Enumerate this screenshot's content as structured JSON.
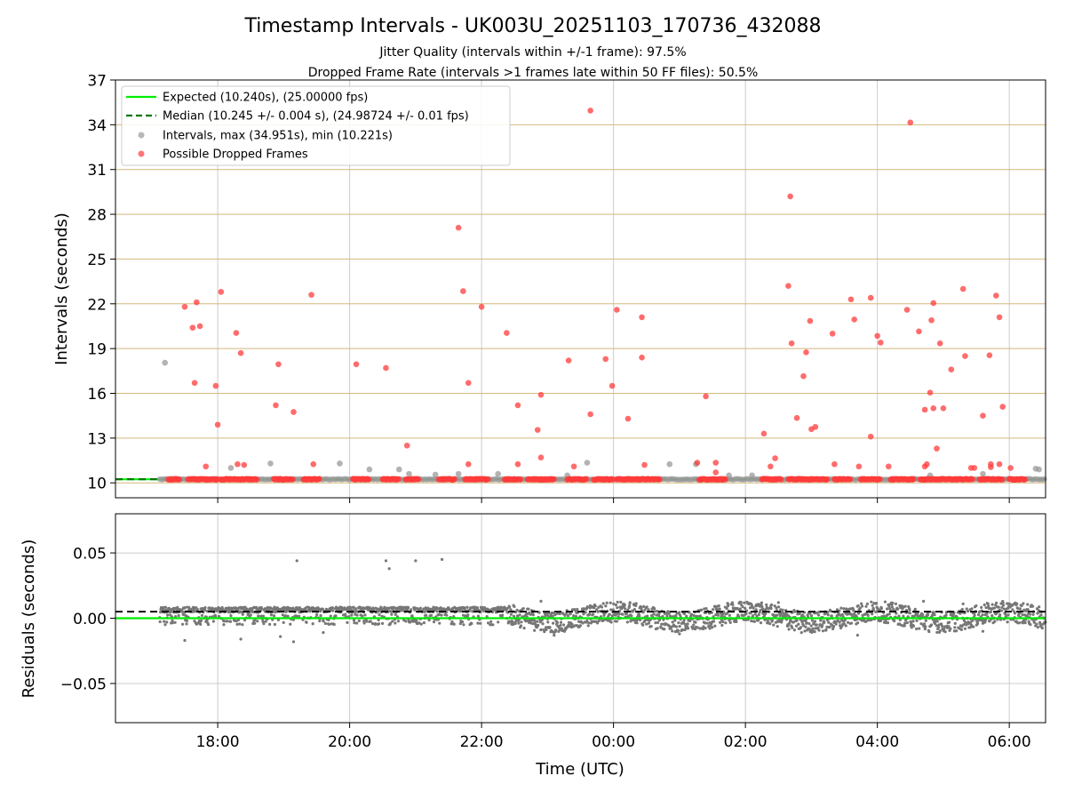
{
  "header": {
    "title": "Timestamp Intervals - UK003U_20251103_170736_432088",
    "subtitle1": "Jitter Quality (intervals within +/-1 frame): 97.5%",
    "subtitle2": "Dropped Frame Rate (intervals >1 frames late within 50 FF files): 50.5%"
  },
  "colors": {
    "expected": "#00ee00",
    "median": "#007700",
    "intervals": "#999999",
    "dropped": "#ff3b3b",
    "residual": "#777777",
    "hgrid": "#d4b87a",
    "vgrid": "#cccccc"
  },
  "chart_data": [
    {
      "type": "scatter",
      "ylabel": "Intervals (seconds)",
      "ylim": [
        9.0,
        37.0
      ],
      "yticks": [
        "10",
        "13",
        "16",
        "19",
        "22",
        "25",
        "28",
        "31",
        "34",
        "37"
      ],
      "ytick_values": [
        10,
        13,
        16,
        19,
        22,
        25,
        28,
        31,
        34,
        37
      ],
      "xlim_hours": [
        16.45,
        30.55
      ],
      "xticks": [
        "18:00",
        "20:00",
        "22:00",
        "00:00",
        "02:00",
        "04:00",
        "06:00"
      ],
      "xtick_hours": [
        18,
        20,
        22,
        24,
        26,
        28,
        30
      ],
      "grid": true,
      "legend_placement": "top-left",
      "legend": [
        "Expected (10.240s), (25.00000 fps)",
        "Median (10.245 +/- 0.004 s), (24.98724 +/- 0.01 fps)",
        "Intervals, max (34.951s), min (10.221s)",
        "Possible Dropped Frames"
      ],
      "lines": {
        "expected": 10.24,
        "median": 10.245
      },
      "baseline": {
        "value": 10.24,
        "x_start": 17.12,
        "x_end": 30.55
      },
      "dropped_bands": [
        [
          17.25,
          17.42
        ],
        [
          17.55,
          18.0
        ],
        [
          18.05,
          18.6
        ],
        [
          18.85,
          19.15
        ],
        [
          19.3,
          19.55
        ],
        [
          20.05,
          20.3
        ],
        [
          20.5,
          20.75
        ],
        [
          20.85,
          21.05
        ],
        [
          21.35,
          21.6
        ],
        [
          21.75,
          22.1
        ],
        [
          22.35,
          22.6
        ],
        [
          22.7,
          23.1
        ],
        [
          23.3,
          23.6
        ],
        [
          23.7,
          24.0
        ],
        [
          24.05,
          24.7
        ],
        [
          25.3,
          25.7
        ],
        [
          26.25,
          26.55
        ],
        [
          26.65,
          27.25
        ],
        [
          27.35,
          27.6
        ],
        [
          27.75,
          28.05
        ],
        [
          28.2,
          28.55
        ],
        [
          28.65,
          29.45
        ],
        [
          29.55,
          29.9
        ],
        [
          30.0,
          30.25
        ]
      ],
      "intervals": [
        [
          17.2,
          18.05
        ],
        [
          18.2,
          11.0
        ],
        [
          18.8,
          11.3
        ],
        [
          19.85,
          11.3
        ],
        [
          20.3,
          10.9
        ],
        [
          20.75,
          10.9
        ],
        [
          20.9,
          10.6
        ],
        [
          21.3,
          10.55
        ],
        [
          21.65,
          10.6
        ],
        [
          22.25,
          10.6
        ],
        [
          23.3,
          10.5
        ],
        [
          23.6,
          11.35
        ],
        [
          24.85,
          11.25
        ],
        [
          25.25,
          11.25
        ],
        [
          25.75,
          10.5
        ],
        [
          26.1,
          10.5
        ],
        [
          28.8,
          10.5
        ],
        [
          29.6,
          10.6
        ],
        [
          30.4,
          10.95
        ],
        [
          30.45,
          10.9
        ]
      ],
      "dropped": [
        [
          17.5,
          21.8
        ],
        [
          17.62,
          20.4
        ],
        [
          17.65,
          16.7
        ],
        [
          17.68,
          22.1
        ],
        [
          17.73,
          20.5
        ],
        [
          17.82,
          11.1
        ],
        [
          17.97,
          16.5
        ],
        [
          18.0,
          13.9
        ],
        [
          18.05,
          22.8
        ],
        [
          18.28,
          20.05
        ],
        [
          18.35,
          18.7
        ],
        [
          18.3,
          11.25
        ],
        [
          18.4,
          11.2
        ],
        [
          18.88,
          15.2
        ],
        [
          18.92,
          17.95
        ],
        [
          19.15,
          14.75
        ],
        [
          19.42,
          22.6
        ],
        [
          19.45,
          11.25
        ],
        [
          20.1,
          17.95
        ],
        [
          20.55,
          17.7
        ],
        [
          20.87,
          12.5
        ],
        [
          21.65,
          27.1
        ],
        [
          21.72,
          22.85
        ],
        [
          21.8,
          16.7
        ],
        [
          21.8,
          11.25
        ],
        [
          22.0,
          21.8
        ],
        [
          22.38,
          20.05
        ],
        [
          22.55,
          15.2
        ],
        [
          22.55,
          11.25
        ],
        [
          22.85,
          13.55
        ],
        [
          22.9,
          15.9
        ],
        [
          22.9,
          11.7
        ],
        [
          23.32,
          18.2
        ],
        [
          23.4,
          11.1
        ],
        [
          23.65,
          34.95
        ],
        [
          23.65,
          14.6
        ],
        [
          23.88,
          18.3
        ],
        [
          23.98,
          16.5
        ],
        [
          24.05,
          21.6
        ],
        [
          24.22,
          14.3
        ],
        [
          24.43,
          18.4
        ],
        [
          24.43,
          21.1
        ],
        [
          24.47,
          11.2
        ],
        [
          25.27,
          11.35
        ],
        [
          25.4,
          15.8
        ],
        [
          25.55,
          11.35
        ],
        [
          25.55,
          10.7
        ],
        [
          26.28,
          13.3
        ],
        [
          26.38,
          11.1
        ],
        [
          26.45,
          11.65
        ],
        [
          26.65,
          23.2
        ],
        [
          26.7,
          19.35
        ],
        [
          26.68,
          29.2
        ],
        [
          26.78,
          14.35
        ],
        [
          26.88,
          17.15
        ],
        [
          26.92,
          18.75
        ],
        [
          26.98,
          20.85
        ],
        [
          27.0,
          13.6
        ],
        [
          27.06,
          13.75
        ],
        [
          27.32,
          20.0
        ],
        [
          27.35,
          11.25
        ],
        [
          27.6,
          22.3
        ],
        [
          27.65,
          20.95
        ],
        [
          27.72,
          11.1
        ],
        [
          27.9,
          22.4
        ],
        [
          27.9,
          13.1
        ],
        [
          28.0,
          19.85
        ],
        [
          28.05,
          19.4
        ],
        [
          28.17,
          11.1
        ],
        [
          28.45,
          21.6
        ],
        [
          28.5,
          34.15
        ],
        [
          28.63,
          20.15
        ],
        [
          28.72,
          11.1
        ],
        [
          28.75,
          11.25
        ],
        [
          28.72,
          14.9
        ],
        [
          28.8,
          16.05
        ],
        [
          28.82,
          20.9
        ],
        [
          28.85,
          22.05
        ],
        [
          28.85,
          15.0
        ],
        [
          28.9,
          12.3
        ],
        [
          28.95,
          19.35
        ],
        [
          29.0,
          15.0
        ],
        [
          29.12,
          17.6
        ],
        [
          29.3,
          23.0
        ],
        [
          29.33,
          18.5
        ],
        [
          29.42,
          11.0
        ],
        [
          29.47,
          11.0
        ],
        [
          29.6,
          14.5
        ],
        [
          29.7,
          18.55
        ],
        [
          29.72,
          11.05
        ],
        [
          29.72,
          11.25
        ],
        [
          29.8,
          22.55
        ],
        [
          29.85,
          21.1
        ],
        [
          29.85,
          11.25
        ],
        [
          29.9,
          15.1
        ],
        [
          30.02,
          11.0
        ]
      ]
    },
    {
      "type": "scatter",
      "ylabel": "Residuals (seconds)",
      "xlabel": "Time (UTC)",
      "ylim": [
        -0.08,
        0.08
      ],
      "yticks": [
        "−0.05",
        "0.00",
        "0.05"
      ],
      "ytick_values": [
        -0.05,
        0.0,
        0.05
      ],
      "xlim_hours": [
        16.45,
        30.55
      ],
      "xticks": [
        "18:00",
        "20:00",
        "22:00",
        "00:00",
        "02:00",
        "04:00",
        "06:00"
      ],
      "xtick_hours": [
        18,
        20,
        22,
        24,
        26,
        28,
        30
      ],
      "grid": true,
      "lines": {
        "expected": 0.0,
        "median": 0.005
      },
      "residual_range_hours": [
        17.12,
        30.55
      ],
      "outliers": [
        [
          19.2,
          0.044
        ],
        [
          20.55,
          0.044
        ],
        [
          20.6,
          0.038
        ],
        [
          21.0,
          0.044
        ],
        [
          21.4,
          0.045
        ],
        [
          17.5,
          -0.017
        ],
        [
          19.15,
          -0.018
        ],
        [
          18.95,
          -0.014
        ],
        [
          19.6,
          -0.011
        ],
        [
          18.35,
          -0.016
        ],
        [
          22.9,
          0.013
        ],
        [
          24.25,
          0.012
        ],
        [
          26.5,
          0.012
        ],
        [
          28.7,
          0.013
        ],
        [
          29.3,
          0.011
        ],
        [
          23.1,
          -0.013
        ],
        [
          25.0,
          -0.012
        ],
        [
          26.85,
          -0.011
        ],
        [
          27.7,
          -0.013
        ],
        [
          29.6,
          -0.01
        ]
      ]
    }
  ]
}
